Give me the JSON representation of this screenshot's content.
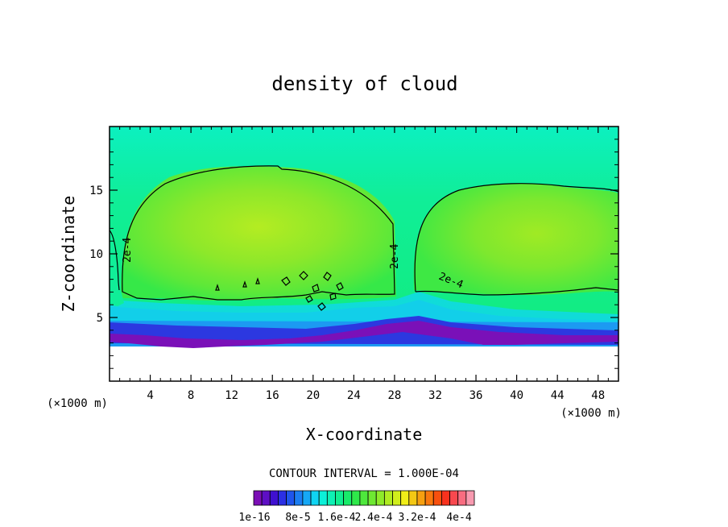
{
  "chart_data": {
    "type": "heatmap",
    "title": "density of cloud",
    "xlabel": "X-coordinate",
    "ylabel": "Z-coordinate",
    "x_unit": "(×1000 m)",
    "z_unit": "(×1000 m)",
    "xlim": [
      0,
      50
    ],
    "ylim": [
      0,
      20
    ],
    "x_ticks": [
      4,
      8,
      12,
      16,
      20,
      24,
      28,
      32,
      36,
      40,
      44,
      48
    ],
    "y_ticks": [
      5,
      10,
      15
    ],
    "contour_interval_text": "CONTOUR INTERVAL = 1.000E-04",
    "contour_labels": [
      {
        "text": "2e-4",
        "x": 1.8,
        "z": 10.4
      },
      {
        "text": "2e-4",
        "x": 28.0,
        "z": 10.4
      },
      {
        "text": "2e-4",
        "x": 34.0,
        "z": 7.8
      }
    ],
    "colorbar": {
      "labels": [
        "1e-16",
        "8e-5",
        "1.6e-4",
        "2.4e-4",
        "3.2e-4",
        "4e-4"
      ],
      "colors": [
        "#7b0fb5",
        "#5e0fc4",
        "#3f10d0",
        "#2b2fe4",
        "#1f55ec",
        "#1c7ef2",
        "#16a8f5",
        "#10d4f2",
        "#0cf0d8",
        "#0ef0b4",
        "#10ee90",
        "#18ec6a",
        "#2ee84a",
        "#4ee83c",
        "#6ee832",
        "#8eea2a",
        "#b0ec22",
        "#d0ee1c",
        "#f0ee18",
        "#f4c814",
        "#f6a010",
        "#f8780e",
        "#f8500e",
        "#f8321e",
        "#f8484e",
        "#f86c80",
        "#f89ab0"
      ]
    }
  }
}
